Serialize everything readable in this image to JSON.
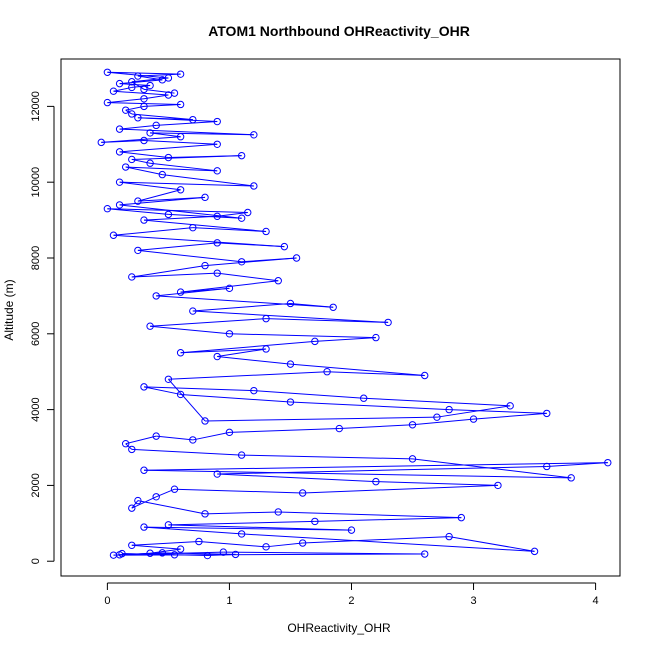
{
  "chart_data": {
    "type": "scatter",
    "title": "ATOM1 Northbound OHReactivity_OHR",
    "xlabel": "OHReactivity_OHR",
    "ylabel": "Altitude (m)",
    "xlim": [
      -0.38,
      4.2
    ],
    "ylim": [
      -390,
      13250
    ],
    "x_ticks": [
      0,
      1,
      2,
      3,
      4
    ],
    "x_tick_labels": [
      "0",
      "1",
      "2",
      "3",
      "4"
    ],
    "y_ticks": [
      0,
      2000,
      4000,
      6000,
      8000,
      10000,
      12000
    ],
    "y_tick_labels": [
      "0",
      "2000",
      "4000",
      "6000",
      "8000",
      "10000",
      "12000"
    ],
    "series_color": "#0000ff",
    "marker": "open-circle",
    "connected": true,
    "grid": false,
    "series": [
      {
        "name": "OHReactivity_OHR",
        "x": [
          0.55,
          0.12,
          0.82,
          1.05,
          0.45,
          0.1,
          0.95,
          2.6,
          0.05,
          0.35,
          0.6,
          0.2,
          0.75,
          1.3,
          1.6,
          2.8,
          3.5,
          1.1,
          0.3,
          2.0,
          0.5,
          1.7,
          2.9,
          1.4,
          0.8,
          0.25,
          0.2,
          0.4,
          0.55,
          1.6,
          3.2,
          2.2,
          0.9,
          3.6,
          4.1,
          0.3,
          3.8,
          2.5,
          1.1,
          0.2,
          0.15,
          0.4,
          0.7,
          1.0,
          1.9,
          2.5,
          3.0,
          3.6,
          2.8,
          1.5,
          0.6,
          0.3,
          1.2,
          2.1,
          3.3,
          2.7,
          0.8,
          0.5,
          1.8,
          2.6,
          1.5,
          0.9,
          1.3,
          0.6,
          1.7,
          2.2,
          1.0,
          0.35,
          1.3,
          2.3,
          0.7,
          1.5,
          1.85,
          0.4,
          1.0,
          0.6,
          1.4,
          0.9,
          0.2,
          0.8,
          1.55,
          1.1,
          0.25,
          0.9,
          1.45,
          0.05,
          0.7,
          1.3,
          0.3,
          0.9,
          1.15,
          0.0,
          0.5,
          1.1,
          0.1,
          0.8,
          0.25,
          0.6,
          0.1,
          1.2,
          0.45,
          0.15,
          0.9,
          0.35,
          0.2,
          1.1,
          0.5,
          0.1,
          0.9,
          0.3,
          -0.05,
          0.6,
          0.35,
          1.2,
          0.1,
          0.4,
          0.9,
          0.25,
          0.7,
          0.2,
          0.15,
          0.3,
          0.6,
          0.0,
          0.3,
          0.5,
          0.05,
          0.2,
          0.35,
          0.1,
          0.45,
          0.25,
          0.6,
          0.0,
          0.5,
          0.2,
          0.3,
          0.55
        ],
        "y": [
          170,
          200,
          150,
          180,
          220,
          170,
          240,
          190,
          160,
          210,
          320,
          420,
          520,
          380,
          480,
          650,
          260,
          720,
          900,
          820,
          960,
          1050,
          1150,
          1300,
          1250,
          1600,
          1400,
          1700,
          1900,
          1800,
          2000,
          2100,
          2300,
          2500,
          2600,
          2400,
          2200,
          2700,
          2800,
          2950,
          3100,
          3300,
          3200,
          3400,
          3500,
          3600,
          3750,
          3900,
          4000,
          4200,
          4400,
          4600,
          4500,
          4300,
          4100,
          3800,
          3700,
          4800,
          5000,
          4900,
          5200,
          5400,
          5600,
          5500,
          5800,
          5900,
          6000,
          6200,
          6400,
          6300,
          6600,
          6800,
          6700,
          7000,
          7200,
          7100,
          7400,
          7600,
          7500,
          7800,
          8000,
          7900,
          8200,
          8400,
          8300,
          8600,
          8800,
          8700,
          9000,
          9100,
          9200,
          9300,
          9150,
          9050,
          9400,
          9600,
          9500,
          9800,
          10000,
          9900,
          10200,
          10400,
          10300,
          10500,
          10600,
          10700,
          10650,
          10800,
          11000,
          11100,
          11050,
          11200,
          11300,
          11250,
          11400,
          11500,
          11600,
          11700,
          11650,
          11800,
          11900,
          12000,
          12050,
          12100,
          12200,
          12300,
          12400,
          12500,
          12550,
          12600,
          12700,
          12800,
          12850,
          12900,
          12750,
          12650,
          12450,
          12350
        ]
      }
    ]
  }
}
